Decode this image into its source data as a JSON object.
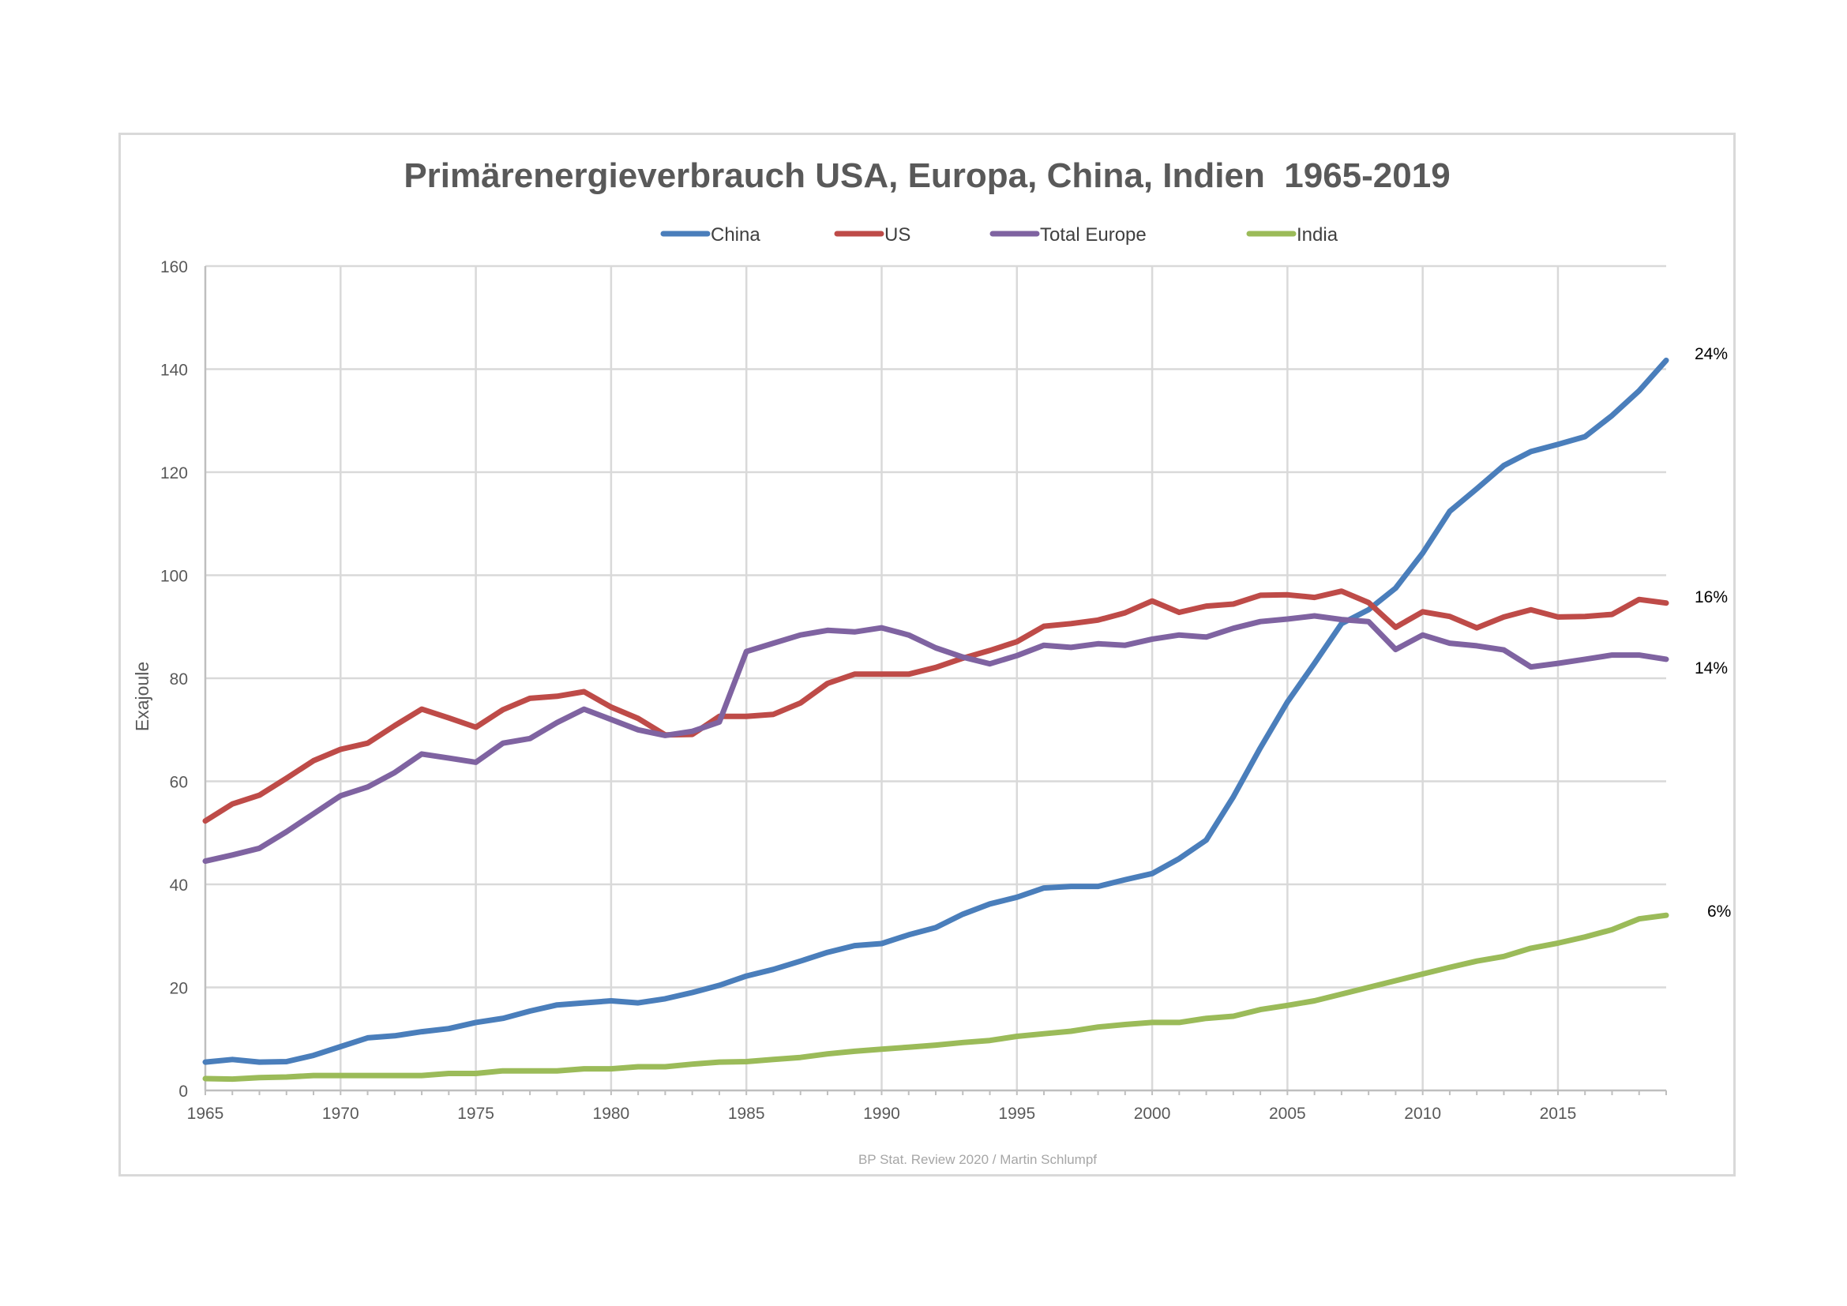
{
  "chart_data": {
    "type": "line",
    "title": "Primärenergieverbrauch USA, Europa, China, Indien  1965-2019",
    "ylabel": "Exajoule",
    "xlabel": "",
    "xlim": [
      1965,
      2019
    ],
    "ylim": [
      0,
      160
    ],
    "x_ticks": [
      "1965",
      "1970",
      "1975",
      "1980",
      "1985",
      "1990",
      "1995",
      "2000",
      "2005",
      "2010",
      "2015"
    ],
    "y_ticks": [
      "0",
      "20",
      "40",
      "60",
      "80",
      "100",
      "120",
      "140",
      "160"
    ],
    "grid": true,
    "legend_position": "top",
    "source": "BP Stat. Review 2020 / Martin Schlumpf",
    "x": [
      1965,
      1966,
      1967,
      1968,
      1969,
      1970,
      1971,
      1972,
      1973,
      1974,
      1975,
      1976,
      1977,
      1978,
      1979,
      1980,
      1981,
      1982,
      1983,
      1984,
      1985,
      1986,
      1987,
      1988,
      1989,
      1990,
      1991,
      1992,
      1993,
      1994,
      1995,
      1996,
      1997,
      1998,
      1999,
      2000,
      2001,
      2002,
      2003,
      2004,
      2005,
      2006,
      2007,
      2008,
      2009,
      2010,
      2011,
      2012,
      2013,
      2014,
      2015,
      2016,
      2017,
      2018,
      2019
    ],
    "series": [
      {
        "name": "China",
        "color": "#4a7ebb",
        "end_label": "24%",
        "values": [
          5.5,
          6,
          5.5,
          5.6,
          6.8,
          8.5,
          10.2,
          10.6,
          11.4,
          12,
          13.2,
          14,
          15.4,
          16.6,
          17,
          17.4,
          17,
          17.8,
          19,
          20.4,
          22.2,
          23.5,
          25.1,
          26.8,
          28.1,
          28.5,
          30.2,
          31.6,
          34.2,
          36.2,
          37.5,
          39.3,
          39.6,
          39.6,
          40.9,
          42.1,
          45,
          48.6,
          57,
          66.5,
          75.4,
          82.9,
          90.6,
          93.3,
          97.5,
          104.3,
          112.4,
          116.8,
          121.3,
          124,
          125.4,
          126.9,
          131,
          135.8,
          141.7
        ]
      },
      {
        "name": "US",
        "color": "#be4b48",
        "end_label": "16%",
        "values": [
          52.3,
          55.6,
          57.3,
          60.6,
          64,
          66.2,
          67.4,
          70.8,
          74,
          72.3,
          70.5,
          73.9,
          76.1,
          76.5,
          77.4,
          74.4,
          72.2,
          69,
          69.1,
          72.6,
          72.6,
          73,
          75.2,
          79,
          80.8,
          80.8,
          80.8,
          82.1,
          83.9,
          85.4,
          87.1,
          90.1,
          90.6,
          91.3,
          92.7,
          95,
          92.8,
          94,
          94.4,
          96.1,
          96.2,
          95.7,
          96.9,
          94.7,
          89.9,
          92.9,
          92,
          89.8,
          91.9,
          93.3,
          91.9,
          92,
          92.4,
          95.3,
          94.6
        ]
      },
      {
        "name": "Total Europe",
        "color": "#7f63a1",
        "end_label": "14%",
        "values": [
          44.5,
          45.7,
          47,
          50.2,
          53.7,
          57.2,
          58.9,
          61.7,
          65.3,
          64.5,
          63.7,
          67.4,
          68.3,
          71.4,
          74,
          72,
          70,
          68.9,
          69.7,
          71.5,
          85.2,
          86.8,
          88.4,
          89.3,
          89,
          89.8,
          88.4,
          85.9,
          84.1,
          82.8,
          84.4,
          86.4,
          86,
          86.7,
          86.4,
          87.6,
          88.4,
          88,
          89.7,
          91,
          91.5,
          92.1,
          91.4,
          91,
          85.6,
          88.4,
          86.8,
          86.3,
          85.5,
          82.2,
          82.9,
          83.7,
          84.5,
          84.5,
          83.7
        ]
      },
      {
        "name": "India",
        "color": "#9bbb59",
        "end_label": "6%",
        "values": [
          2.3,
          2.2,
          2.5,
          2.6,
          2.9,
          2.9,
          2.9,
          2.9,
          2.9,
          3.3,
          3.3,
          3.8,
          3.8,
          3.8,
          4.2,
          4.2,
          4.6,
          4.6,
          5.1,
          5.5,
          5.6,
          6,
          6.4,
          7.1,
          7.6,
          8,
          8.4,
          8.8,
          9.3,
          9.7,
          10.5,
          11,
          11.5,
          12.3,
          12.8,
          13.2,
          13.2,
          14,
          14.4,
          15.7,
          16.5,
          17.4,
          18.7,
          20,
          21.3,
          22.6,
          23.9,
          25.1,
          26,
          27.6,
          28.6,
          29.8,
          31.2,
          33.3,
          34
        ]
      }
    ]
  }
}
